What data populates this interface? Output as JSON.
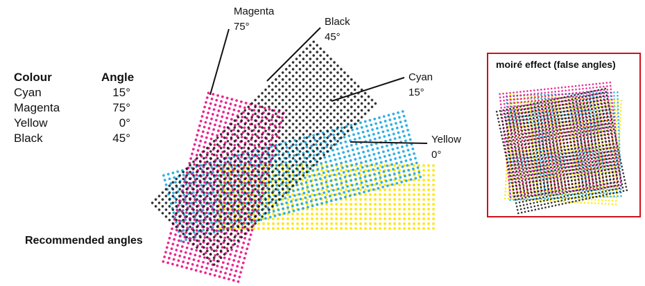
{
  "table": {
    "header": {
      "colour": "Colour",
      "angle": "Angle"
    },
    "rows": [
      {
        "colour": "Cyan",
        "angle": "15°"
      },
      {
        "colour": "Magenta",
        "angle": "75°"
      },
      {
        "colour": "Yellow",
        "angle": "0°"
      },
      {
        "colour": "Black",
        "angle": "45°"
      }
    ]
  },
  "callouts": {
    "magenta": {
      "name": "Magenta",
      "angle": "75°"
    },
    "black": {
      "name": "Black",
      "angle": "45°"
    },
    "cyan": {
      "name": "Cyan",
      "angle": "15°"
    },
    "yellow": {
      "name": "Yellow",
      "angle": "0°"
    }
  },
  "caption": "Recommended angles",
  "moire": {
    "title": "moiré effect (false angles)"
  },
  "colors": {
    "cyan": "#1aa7e0",
    "magenta": "#e6007e",
    "yellow": "#ffe600",
    "black": "#111111",
    "frame": "#d0101a"
  }
}
